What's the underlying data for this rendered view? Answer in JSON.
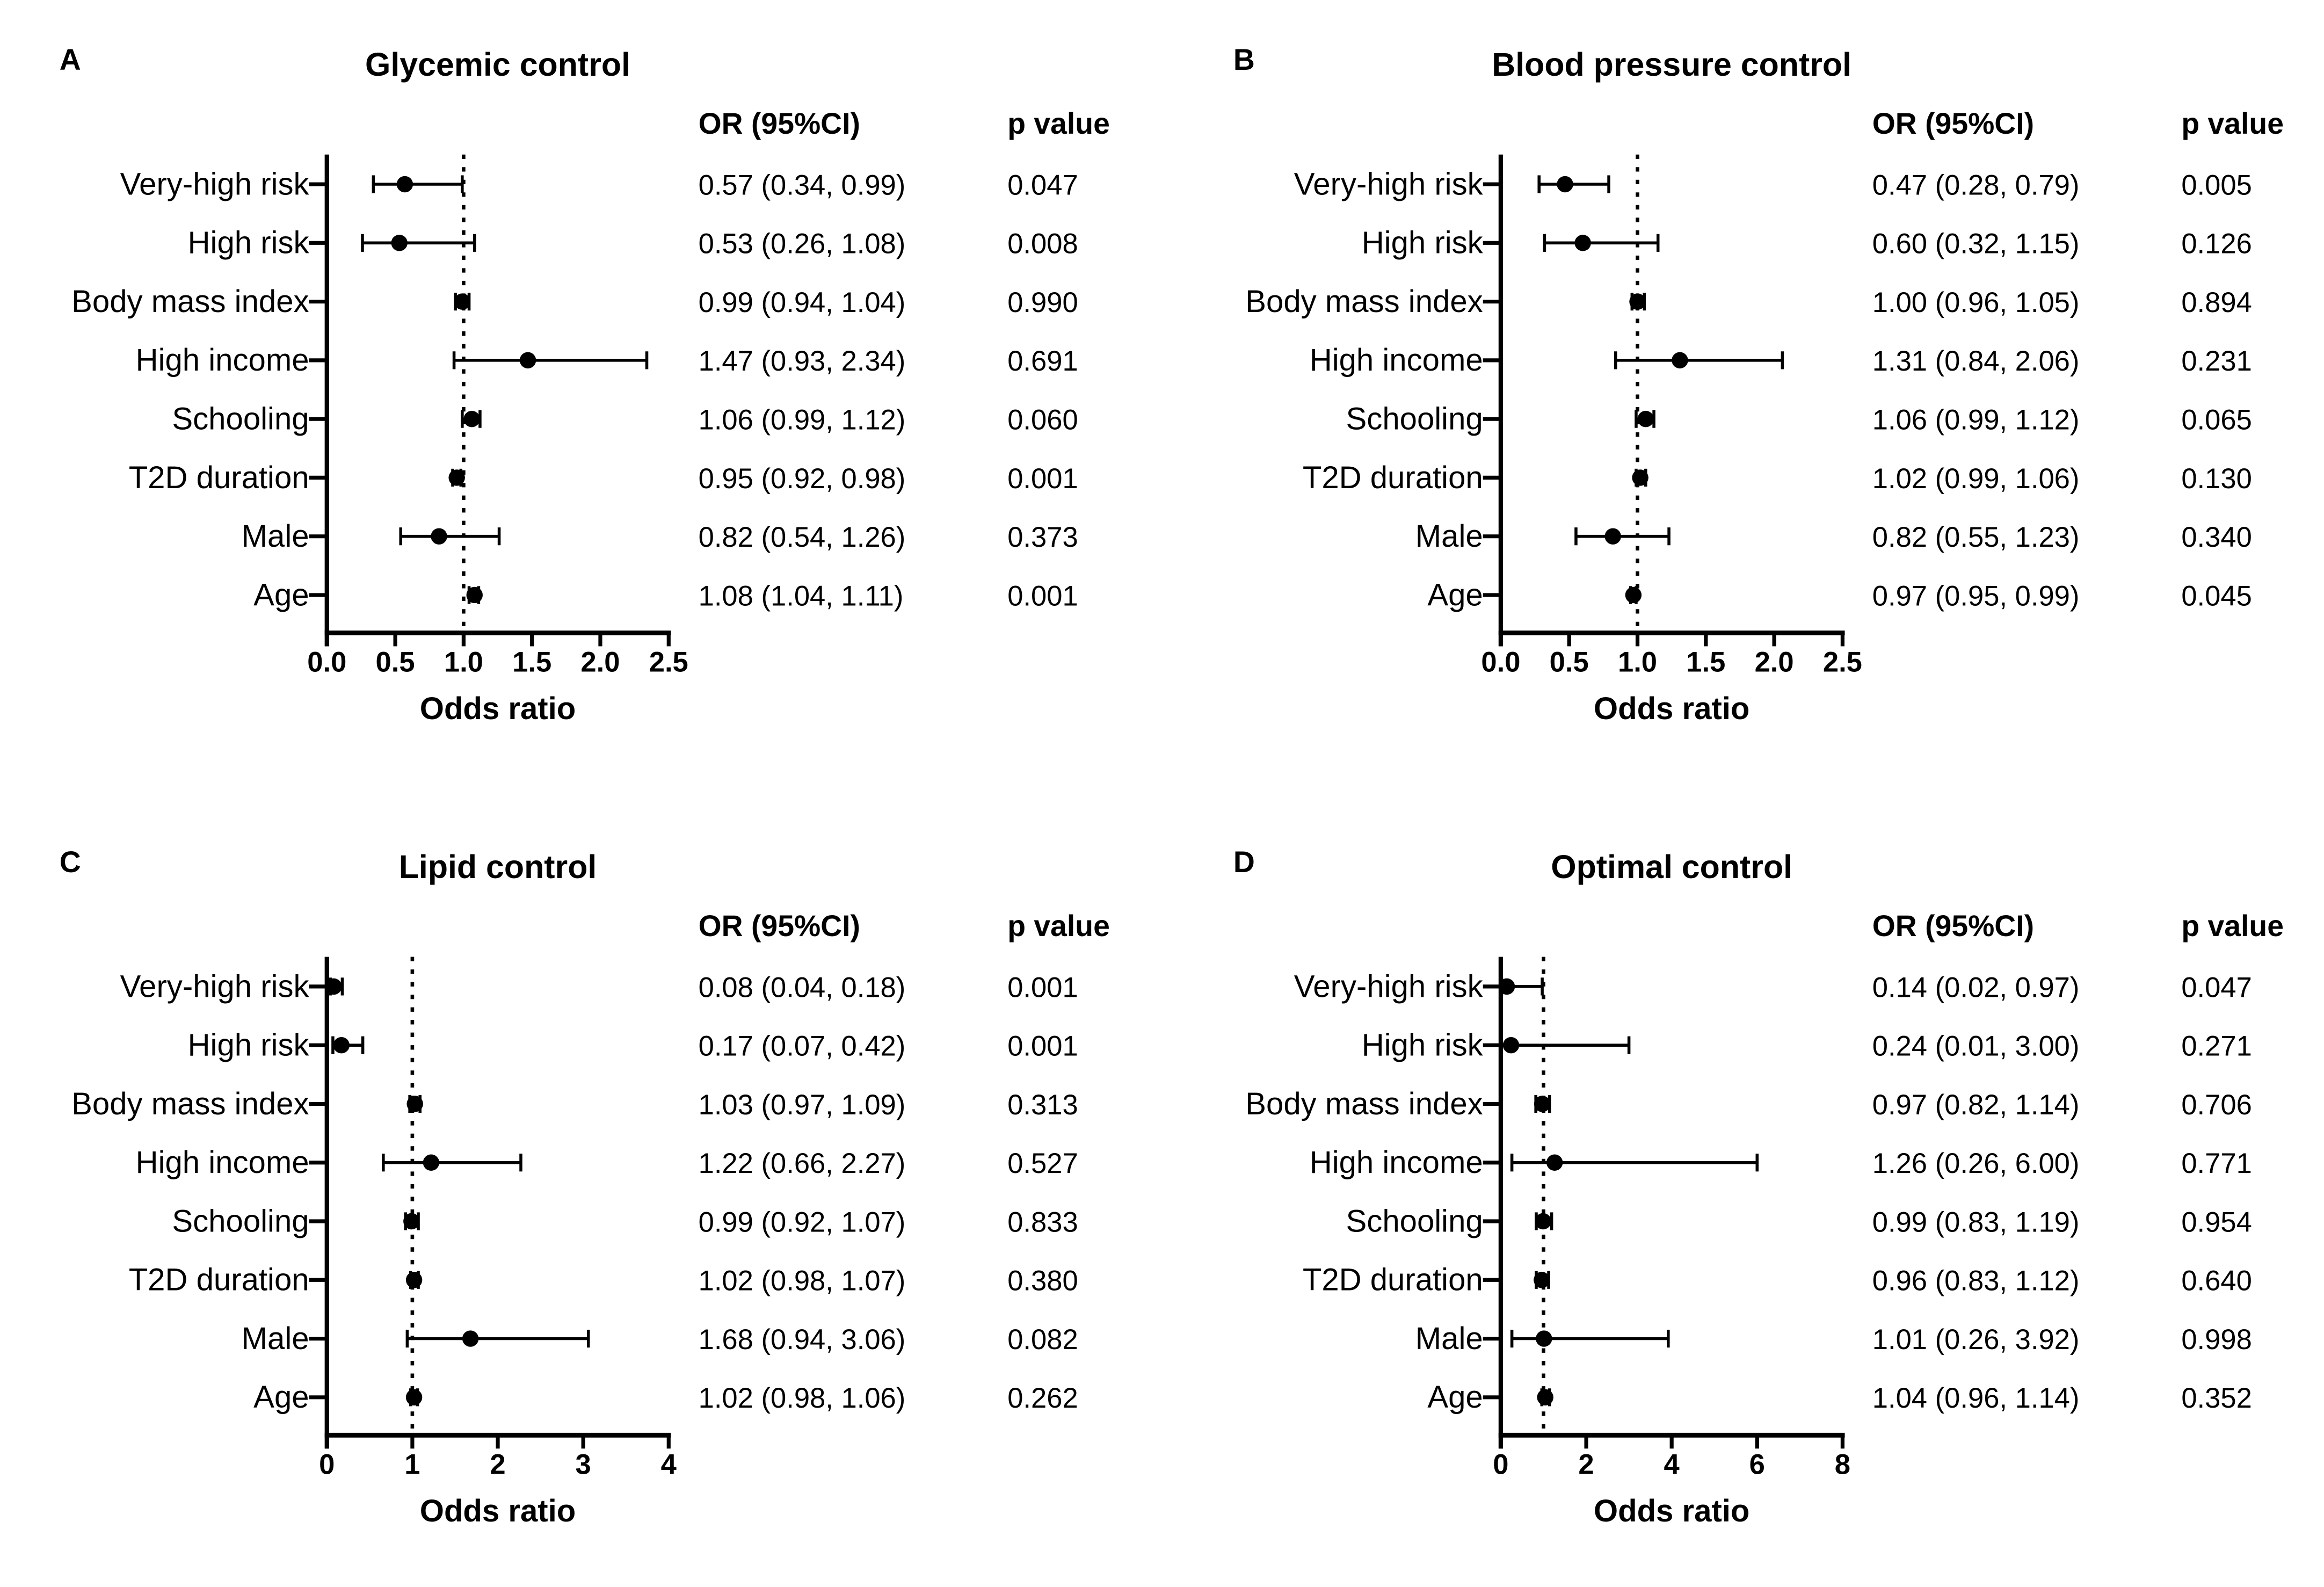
{
  "figure": {
    "background": "#ffffff",
    "ink_color": "#000000",
    "row_labels": [
      "Very-high risk",
      "High risk",
      "Body mass index",
      "High income",
      "Schooling",
      "T2D duration",
      "Male",
      "Age"
    ]
  },
  "chart_data": [
    {
      "type": "scatter",
      "subtype": "forest-plot",
      "panel": "A",
      "title": "Glycemic control",
      "or_header": "OR (95%CI)",
      "p_header": "p value",
      "xlabel": "Odds ratio",
      "xlim": [
        0,
        2.5
      ],
      "xticks": [
        0,
        0.5,
        1,
        1.5,
        2,
        2.5
      ],
      "xtick_labels": [
        "0.0",
        "0.5",
        "1.0",
        "1.5",
        "2.0",
        "2.5"
      ],
      "refline": 1,
      "grid": false,
      "rows": [
        {
          "label": "Very-high risk",
          "or": 0.57,
          "lo": 0.34,
          "hi": 0.99,
          "or_text": "0.57 (0.34, 0.99)",
          "p_text": "0.047"
        },
        {
          "label": "High risk",
          "or": 0.53,
          "lo": 0.26,
          "hi": 1.08,
          "or_text": "0.53 (0.26, 1.08)",
          "p_text": "0.008"
        },
        {
          "label": "Body mass index",
          "or": 0.99,
          "lo": 0.94,
          "hi": 1.04,
          "or_text": "0.99 (0.94, 1.04)",
          "p_text": "0.990"
        },
        {
          "label": "High income",
          "or": 1.47,
          "lo": 0.93,
          "hi": 2.34,
          "or_text": "1.47 (0.93, 2.34)",
          "p_text": "0.691"
        },
        {
          "label": "Schooling",
          "or": 1.06,
          "lo": 0.99,
          "hi": 1.12,
          "or_text": "1.06 (0.99, 1.12)",
          "p_text": "0.060"
        },
        {
          "label": "T2D duration",
          "or": 0.95,
          "lo": 0.92,
          "hi": 0.98,
          "or_text": "0.95 (0.92, 0.98)",
          "p_text": "0.001"
        },
        {
          "label": "Male",
          "or": 0.82,
          "lo": 0.54,
          "hi": 1.26,
          "or_text": "0.82 (0.54, 1.26)",
          "p_text": "0.373"
        },
        {
          "label": "Age",
          "or": 1.08,
          "lo": 1.04,
          "hi": 1.11,
          "or_text": "1.08 (1.04, 1.11)",
          "p_text": "0.001"
        }
      ]
    },
    {
      "type": "scatter",
      "subtype": "forest-plot",
      "panel": "B",
      "title": "Blood pressure control",
      "or_header": "OR (95%CI)",
      "p_header": "p value",
      "xlabel": "Odds ratio",
      "xlim": [
        0,
        2.5
      ],
      "xticks": [
        0,
        0.5,
        1,
        1.5,
        2,
        2.5
      ],
      "xtick_labels": [
        "0.0",
        "0.5",
        "1.0",
        "1.5",
        "2.0",
        "2.5"
      ],
      "refline": 1,
      "grid": false,
      "rows": [
        {
          "label": "Very-high risk",
          "or": 0.47,
          "lo": 0.28,
          "hi": 0.79,
          "or_text": "0.47 (0.28, 0.79)",
          "p_text": "0.005"
        },
        {
          "label": "High risk",
          "or": 0.6,
          "lo": 0.32,
          "hi": 1.15,
          "or_text": "0.60 (0.32, 1.15)",
          "p_text": "0.126"
        },
        {
          "label": "Body mass index",
          "or": 1.0,
          "lo": 0.96,
          "hi": 1.05,
          "or_text": "1.00 (0.96, 1.05)",
          "p_text": "0.894"
        },
        {
          "label": "High income",
          "or": 1.31,
          "lo": 0.84,
          "hi": 2.06,
          "or_text": "1.31 (0.84, 2.06)",
          "p_text": "0.231"
        },
        {
          "label": "Schooling",
          "or": 1.06,
          "lo": 0.99,
          "hi": 1.12,
          "or_text": "1.06 (0.99, 1.12)",
          "p_text": "0.065"
        },
        {
          "label": "T2D duration",
          "or": 1.02,
          "lo": 0.99,
          "hi": 1.06,
          "or_text": "1.02 (0.99, 1.06)",
          "p_text": "0.130"
        },
        {
          "label": "Male",
          "or": 0.82,
          "lo": 0.55,
          "hi": 1.23,
          "or_text": "0.82 (0.55, 1.23)",
          "p_text": "0.340"
        },
        {
          "label": "Age",
          "or": 0.97,
          "lo": 0.95,
          "hi": 0.99,
          "or_text": "0.97 (0.95, 0.99)",
          "p_text": "0.045"
        }
      ]
    },
    {
      "type": "scatter",
      "subtype": "forest-plot",
      "panel": "C",
      "title": "Lipid control",
      "or_header": "OR (95%CI)",
      "p_header": "p value",
      "xlabel": "Odds ratio",
      "xlim": [
        0,
        4
      ],
      "xticks": [
        0,
        1,
        2,
        3,
        4
      ],
      "xtick_labels": [
        "0",
        "1",
        "2",
        "3",
        "4"
      ],
      "refline": 1,
      "grid": false,
      "rows": [
        {
          "label": "Very-high risk",
          "or": 0.08,
          "lo": 0.04,
          "hi": 0.18,
          "or_text": "0.08 (0.04, 0.18)",
          "p_text": "0.001"
        },
        {
          "label": "High risk",
          "or": 0.17,
          "lo": 0.07,
          "hi": 0.42,
          "or_text": "0.17 (0.07, 0.42)",
          "p_text": "0.001"
        },
        {
          "label": "Body mass index",
          "or": 1.03,
          "lo": 0.97,
          "hi": 1.09,
          "or_text": "1.03 (0.97, 1.09)",
          "p_text": "0.313"
        },
        {
          "label": "High income",
          "or": 1.22,
          "lo": 0.66,
          "hi": 2.27,
          "or_text": "1.22 (0.66, 2.27)",
          "p_text": "0.527"
        },
        {
          "label": "Schooling",
          "or": 0.99,
          "lo": 0.92,
          "hi": 1.07,
          "or_text": "0.99 (0.92, 1.07)",
          "p_text": "0.833"
        },
        {
          "label": "T2D duration",
          "or": 1.02,
          "lo": 0.98,
          "hi": 1.07,
          "or_text": "1.02 (0.98, 1.07)",
          "p_text": "0.380"
        },
        {
          "label": "Male",
          "or": 1.68,
          "lo": 0.94,
          "hi": 3.06,
          "or_text": "1.68 (0.94, 3.06)",
          "p_text": "0.082"
        },
        {
          "label": "Age",
          "or": 1.02,
          "lo": 0.98,
          "hi": 1.06,
          "or_text": "1.02 (0.98, 1.06)",
          "p_text": "0.262"
        }
      ]
    },
    {
      "type": "scatter",
      "subtype": "forest-plot",
      "panel": "D",
      "title": "Optimal control",
      "or_header": "OR (95%CI)",
      "p_header": "p value",
      "xlabel": "Odds ratio",
      "xlim": [
        0,
        8
      ],
      "xticks": [
        0,
        2,
        4,
        6,
        8
      ],
      "xtick_labels": [
        "0",
        "2",
        "4",
        "6",
        "8"
      ],
      "refline": 1,
      "grid": false,
      "rows": [
        {
          "label": "Very-high risk",
          "or": 0.14,
          "lo": 0.02,
          "hi": 0.97,
          "or_text": "0.14 (0.02, 0.97)",
          "p_text": "0.047"
        },
        {
          "label": "High risk",
          "or": 0.24,
          "lo": 0.01,
          "hi": 3.0,
          "or_text": "0.24 (0.01, 3.00)",
          "p_text": "0.271"
        },
        {
          "label": "Body mass index",
          "or": 0.97,
          "lo": 0.82,
          "hi": 1.14,
          "or_text": "0.97 (0.82, 1.14)",
          "p_text": "0.706"
        },
        {
          "label": "High income",
          "or": 1.26,
          "lo": 0.26,
          "hi": 6.0,
          "or_text": "1.26 (0.26, 6.00)",
          "p_text": "0.771"
        },
        {
          "label": "Schooling",
          "or": 0.99,
          "lo": 0.83,
          "hi": 1.19,
          "or_text": "0.99 (0.83, 1.19)",
          "p_text": "0.954"
        },
        {
          "label": "T2D duration",
          "or": 0.96,
          "lo": 0.83,
          "hi": 1.12,
          "or_text": "0.96 (0.83, 1.12)",
          "p_text": "0.640"
        },
        {
          "label": "Male",
          "or": 1.01,
          "lo": 0.26,
          "hi": 3.92,
          "or_text": "1.01 (0.26, 3.92)",
          "p_text": "0.998"
        },
        {
          "label": "Age",
          "or": 1.04,
          "lo": 0.96,
          "hi": 1.14,
          "or_text": "1.04 (0.96, 1.14)",
          "p_text": "0.352"
        }
      ]
    }
  ]
}
